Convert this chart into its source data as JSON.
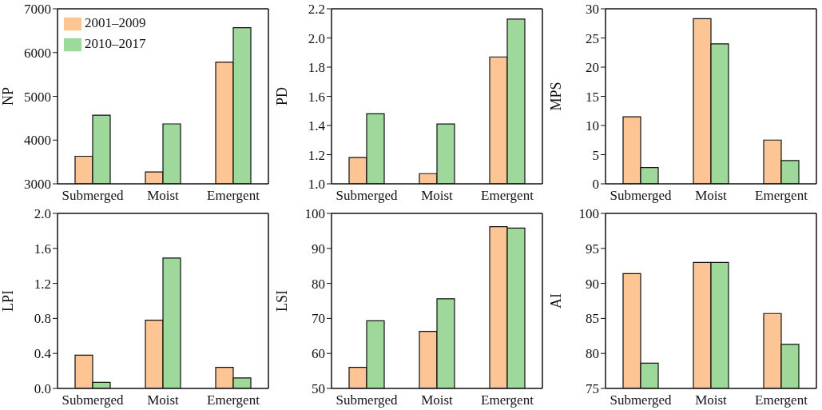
{
  "chart_data": [
    {
      "type": "bar",
      "categories": [
        "Submerged",
        "Moist",
        "Emergent"
      ],
      "ylabel": "NP",
      "ylim": [
        3000,
        7000
      ],
      "yticks": [
        3000,
        4000,
        5000,
        6000,
        7000
      ],
      "grid": false,
      "legend": "top left",
      "series": [
        {
          "name": "2001–2009",
          "color": "#fdc593",
          "values": [
            3630,
            3270,
            5780
          ]
        },
        {
          "name": "2010–2017",
          "color": "#9ed89a",
          "values": [
            4570,
            4370,
            6570
          ]
        }
      ]
    },
    {
      "type": "bar",
      "categories": [
        "Submerged",
        "Moist",
        "Emergent"
      ],
      "ylabel": "PD",
      "ylim": [
        1.0,
        2.2
      ],
      "yticks": [
        {
          "value": 1,
          "label": "1.0"
        },
        1.2,
        1.4,
        1.6,
        1.8,
        {
          "value": 2,
          "label": "2.0"
        },
        2.2
      ],
      "grid": false,
      "series": [
        {
          "color": "#fdc593",
          "values": [
            1.18,
            1.07,
            1.87
          ]
        },
        {
          "color": "#9ed89a",
          "values": [
            1.48,
            1.41,
            2.13
          ]
        }
      ]
    },
    {
      "type": "bar",
      "categories": [
        "Submerged",
        "Moist",
        "Emergent"
      ],
      "ylabel": "MPS",
      "ylim": [
        0,
        30
      ],
      "yticks": [
        0,
        5,
        10,
        15,
        20,
        25,
        30
      ],
      "grid": false,
      "series": [
        {
          "color": "#fdc593",
          "values": [
            11.5,
            28.3,
            7.5
          ]
        },
        {
          "color": "#9ed89a",
          "values": [
            2.8,
            24,
            4
          ]
        }
      ]
    },
    {
      "type": "bar",
      "categories": [
        "Submerged",
        "Moist",
        "Emergent"
      ],
      "ylabel": "LPI",
      "ylim": [
        0,
        2.0
      ],
      "yticks": [
        {
          "value": 0,
          "label": "0.0"
        },
        0.4,
        0.8,
        1.2,
        1.6,
        {
          "value": 2,
          "label": "2.0"
        }
      ],
      "grid": false,
      "series": [
        {
          "color": "#fdc593",
          "values": [
            0.38,
            0.78,
            0.24
          ]
        },
        {
          "color": "#9ed89a",
          "values": [
            0.07,
            1.49,
            0.12
          ]
        }
      ]
    },
    {
      "type": "bar",
      "categories": [
        "Submerged",
        "Moist",
        "Emergent"
      ],
      "ylabel": "LSI",
      "ylim": [
        50,
        100
      ],
      "yticks": [
        50,
        60,
        70,
        80,
        90,
        100
      ],
      "grid": false,
      "series": [
        {
          "color": "#fdc593",
          "values": [
            56,
            66.3,
            96.2
          ]
        },
        {
          "color": "#9ed89a",
          "values": [
            69.3,
            75.6,
            95.8
          ]
        }
      ]
    },
    {
      "type": "bar",
      "categories": [
        "Submerged",
        "Moist",
        "Emergent"
      ],
      "ylabel": "AI",
      "ylim": [
        75,
        100
      ],
      "yticks": [
        75,
        80,
        85,
        90,
        95,
        100
      ],
      "grid": false,
      "series": [
        {
          "color": "#fdc593",
          "values": [
            91.4,
            93,
            85.7
          ]
        },
        {
          "color": "#9ed89a",
          "values": [
            78.6,
            93,
            81.3
          ]
        }
      ]
    }
  ]
}
